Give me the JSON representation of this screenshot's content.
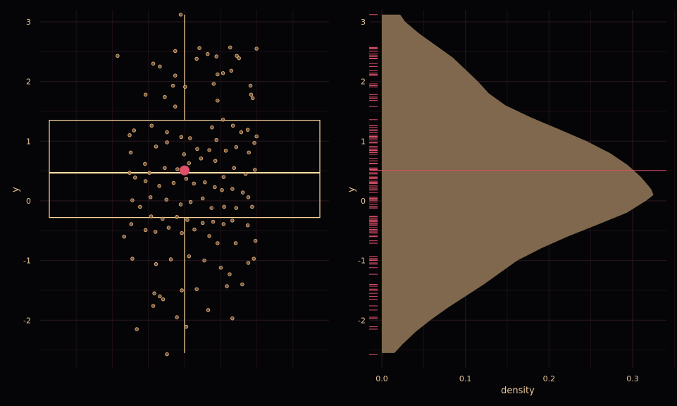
{
  "colors": {
    "background": "#050507",
    "grid": "#2a1620",
    "box": "#ffd8a0",
    "point_fill": "#8a6a4a",
    "point_stroke": "#e8b07a",
    "mean": "#e0506a",
    "density_fill": "#7f684d",
    "rug": "#e0506a",
    "text": "#e8c79a"
  },
  "chart_data": [
    {
      "panel": "left",
      "type": "boxplot+jitter",
      "xlabel": "",
      "ylabel": "y",
      "ylim": [
        -2.8,
        3.2
      ],
      "yticks": [
        -2,
        -1,
        0,
        1,
        2,
        3
      ],
      "box": {
        "q1": -0.28,
        "median": 0.47,
        "q3": 1.35,
        "whisker_low": -2.55,
        "whisker_high": 3.12
      },
      "mean": 0.51,
      "grid": true,
      "points": [
        [
          -1.22,
          2.43
        ],
        [
          -0.57,
          2.3
        ],
        [
          -0.45,
          2.25
        ],
        [
          -0.17,
          2.51
        ],
        [
          0.27,
          2.56
        ],
        [
          0.42,
          2.46
        ],
        [
          0.58,
          2.42
        ],
        [
          0.7,
          2.14
        ],
        [
          0.83,
          2.57
        ],
        [
          0.95,
          2.43
        ],
        [
          1.31,
          2.55
        ],
        [
          0.99,
          2.39
        ],
        [
          0.22,
          2.38
        ],
        [
          -0.17,
          2.1
        ],
        [
          -0.71,
          1.78
        ],
        [
          -0.36,
          1.74
        ],
        [
          -0.21,
          1.93
        ],
        [
          0.01,
          1.91
        ],
        [
          0.53,
          1.96
        ],
        [
          0.6,
          2.12
        ],
        [
          0.85,
          2.18
        ],
        [
          1.2,
          1.93
        ],
        [
          1.21,
          1.78
        ],
        [
          1.24,
          1.72
        ],
        [
          0.6,
          1.68
        ],
        [
          -0.17,
          1.58
        ],
        [
          -0.92,
          1.18
        ],
        [
          -0.6,
          1.26
        ],
        [
          -0.32,
          1.15
        ],
        [
          -0.06,
          1.07
        ],
        [
          0.1,
          1.05
        ],
        [
          0.5,
          1.23
        ],
        [
          0.7,
          1.36
        ],
        [
          0.88,
          1.26
        ],
        [
          1.03,
          1.15
        ],
        [
          1.15,
          1.19
        ],
        [
          1.31,
          1.08
        ],
        [
          -1.0,
          1.1
        ],
        [
          -0.98,
          0.81
        ],
        [
          -0.52,
          0.91
        ],
        [
          -0.32,
          0.98
        ],
        [
          -0.01,
          0.78
        ],
        [
          0.23,
          0.87
        ],
        [
          0.45,
          0.85
        ],
        [
          0.58,
          1.02
        ],
        [
          0.75,
          0.84
        ],
        [
          0.94,
          0.9
        ],
        [
          1.17,
          0.81
        ],
        [
          1.27,
          0.97
        ],
        [
          -0.72,
          0.62
        ],
        [
          -0.64,
          0.47
        ],
        [
          -0.36,
          0.55
        ],
        [
          -0.13,
          0.53
        ],
        [
          0.08,
          0.63
        ],
        [
          0.3,
          0.71
        ],
        [
          0.56,
          0.67
        ],
        [
          0.71,
          0.4
        ],
        [
          0.9,
          0.55
        ],
        [
          1.11,
          0.45
        ],
        [
          1.28,
          0.52
        ],
        [
          -1.0,
          0.47
        ],
        [
          -0.9,
          0.39
        ],
        [
          -0.71,
          0.33
        ],
        [
          -0.46,
          0.25
        ],
        [
          -0.2,
          0.3
        ],
        [
          0.03,
          0.37
        ],
        [
          0.17,
          0.29
        ],
        [
          0.37,
          0.31
        ],
        [
          0.55,
          0.23
        ],
        [
          0.68,
          0.18
        ],
        [
          0.87,
          0.2
        ],
        [
          1.06,
          0.14
        ],
        [
          1.16,
          0.06
        ],
        [
          -0.95,
          0.01
        ],
        [
          -0.62,
          0.06
        ],
        [
          -0.33,
          0.02
        ],
        [
          -0.07,
          -0.06
        ],
        [
          0.11,
          -0.02
        ],
        [
          0.33,
          0.04
        ],
        [
          0.49,
          -0.12
        ],
        [
          0.72,
          -0.1
        ],
        [
          0.94,
          -0.12
        ],
        [
          1.23,
          -0.1
        ],
        [
          -0.81,
          -0.1
        ],
        [
          -0.61,
          -0.26
        ],
        [
          -0.4,
          -0.3
        ],
        [
          -0.14,
          -0.27
        ],
        [
          0.05,
          -0.32
        ],
        [
          0.33,
          -0.37
        ],
        [
          0.52,
          -0.35
        ],
        [
          0.71,
          -0.39
        ],
        [
          0.87,
          -0.33
        ],
        [
          1.15,
          -0.41
        ],
        [
          -0.97,
          -0.39
        ],
        [
          -1.1,
          -0.6
        ],
        [
          -0.71,
          -0.49
        ],
        [
          -0.53,
          -0.52
        ],
        [
          -0.29,
          -0.45
        ],
        [
          -0.05,
          -0.54
        ],
        [
          0.18,
          -0.48
        ],
        [
          0.45,
          -0.59
        ],
        [
          0.6,
          -0.71
        ],
        [
          0.93,
          -0.71
        ],
        [
          1.29,
          -0.67
        ],
        [
          -0.95,
          -0.97
        ],
        [
          -0.52,
          -1.06
        ],
        [
          -0.25,
          -0.98
        ],
        [
          0.08,
          -0.93
        ],
        [
          0.36,
          -1.0
        ],
        [
          0.66,
          -1.12
        ],
        [
          0.82,
          -1.23
        ],
        [
          1.16,
          -1.04
        ],
        [
          1.26,
          -0.97
        ],
        [
          -0.55,
          -1.55
        ],
        [
          -0.45,
          -1.6
        ],
        [
          -0.39,
          -1.65
        ],
        [
          -0.05,
          -1.5
        ],
        [
          0.22,
          -1.48
        ],
        [
          0.77,
          -1.43
        ],
        [
          1.05,
          -1.4
        ],
        [
          -0.57,
          -1.76
        ],
        [
          0.43,
          -1.83
        ],
        [
          -0.14,
          -1.95
        ],
        [
          0.87,
          -1.97
        ],
        [
          -0.87,
          -2.15
        ],
        [
          0.03,
          -2.11
        ],
        [
          -0.32,
          -2.57
        ],
        [
          -0.07,
          3.12
        ]
      ]
    },
    {
      "panel": "right",
      "type": "density",
      "xlabel": "density",
      "ylabel": "y",
      "xlim": [
        -0.01,
        0.34
      ],
      "ylim": [
        -2.8,
        3.2
      ],
      "xticks": [
        "0.0",
        "0.1",
        "0.2",
        "0.3"
      ],
      "xtick_values": [
        0.0,
        0.1,
        0.2,
        0.3
      ],
      "yticks": [
        -2,
        -1,
        0,
        1,
        2,
        3
      ],
      "mean_line": 0.51,
      "grid": true,
      "density_curve": [
        [
          -2.55,
          0.015
        ],
        [
          -2.4,
          0.025
        ],
        [
          -2.2,
          0.04
        ],
        [
          -2.0,
          0.058
        ],
        [
          -1.8,
          0.078
        ],
        [
          -1.6,
          0.1
        ],
        [
          -1.4,
          0.122
        ],
        [
          -1.2,
          0.142
        ],
        [
          -1.0,
          0.162
        ],
        [
          -0.8,
          0.19
        ],
        [
          -0.6,
          0.222
        ],
        [
          -0.4,
          0.258
        ],
        [
          -0.2,
          0.293
        ],
        [
          0.0,
          0.316
        ],
        [
          0.1,
          0.325
        ],
        [
          0.2,
          0.322
        ],
        [
          0.4,
          0.31
        ],
        [
          0.6,
          0.294
        ],
        [
          0.8,
          0.273
        ],
        [
          1.0,
          0.245
        ],
        [
          1.2,
          0.212
        ],
        [
          1.4,
          0.178
        ],
        [
          1.6,
          0.148
        ],
        [
          1.8,
          0.128
        ],
        [
          2.0,
          0.115
        ],
        [
          2.2,
          0.1
        ],
        [
          2.4,
          0.085
        ],
        [
          2.6,
          0.065
        ],
        [
          2.8,
          0.045
        ],
        [
          3.0,
          0.028
        ],
        [
          3.12,
          0.022
        ]
      ]
    }
  ]
}
